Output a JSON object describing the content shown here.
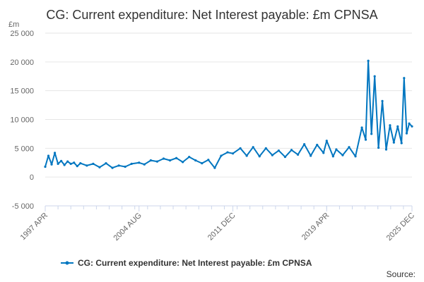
{
  "chart_data": {
    "type": "line",
    "title": "CG: Current expenditure: Net Interest payable: £m CPNSA",
    "ylabel": "£m",
    "xlabel": "",
    "ylim": [
      -5000,
      25000
    ],
    "yticks": [
      "25 000",
      "20 000",
      "15 000",
      "10 000",
      "5 000",
      "0",
      "-5 000"
    ],
    "ytick_values": [
      25000,
      20000,
      15000,
      10000,
      5000,
      0,
      -5000
    ],
    "xticks": [
      "1997 APR",
      "2004 AUG",
      "2011 DEC",
      "2019 APR",
      "2025 DEC"
    ],
    "xtick_values": [
      1997.25,
      2004.583,
      2011.917,
      2019.25,
      2025.917
    ],
    "xlim": [
      1997.25,
      2025.917
    ],
    "grid": true,
    "legend_position": "bottom-center",
    "series": [
      {
        "name": "CG: Current expenditure: Net Interest payable: £m CPNSA",
        "color": "#0076c0",
        "x": [
          1997.25,
          1997.5,
          1997.75,
          1998.0,
          1998.25,
          1998.5,
          1998.75,
          1999.0,
          1999.25,
          1999.5,
          1999.75,
          2000.0,
          2000.5,
          2001.0,
          2001.5,
          2002.0,
          2002.5,
          2003.0,
          2003.5,
          2004.0,
          2004.583,
          2005.0,
          2005.5,
          2006.0,
          2006.5,
          2007.0,
          2007.5,
          2008.0,
          2008.5,
          2009.0,
          2009.5,
          2010.0,
          2010.5,
          2011.0,
          2011.5,
          2011.917,
          2012.5,
          2013.0,
          2013.5,
          2014.0,
          2014.5,
          2015.0,
          2015.5,
          2016.0,
          2016.5,
          2017.0,
          2017.5,
          2018.0,
          2018.5,
          2019.0,
          2019.25,
          2019.75,
          2020.0,
          2020.5,
          2021.0,
          2021.5,
          2022.0,
          2022.3,
          2022.5,
          2022.75,
          2023.0,
          2023.3,
          2023.6,
          2023.9,
          2024.2,
          2024.5,
          2024.8,
          2025.1,
          2025.3,
          2025.5,
          2025.7,
          2025.917
        ],
        "values": [
          1800,
          3700,
          2200,
          4200,
          2300,
          2800,
          2100,
          2700,
          2300,
          2500,
          1900,
          2400,
          2000,
          2300,
          1700,
          2400,
          1600,
          2000,
          1800,
          2300,
          2500,
          2200,
          2900,
          2700,
          3200,
          2900,
          3300,
          2600,
          3500,
          2900,
          2400,
          3000,
          1600,
          3700,
          4300,
          4100,
          5000,
          3700,
          5200,
          3600,
          5000,
          3800,
          4600,
          3500,
          4700,
          3900,
          5700,
          3700,
          5600,
          4200,
          6300,
          3600,
          4800,
          3800,
          5200,
          3600,
          8600,
          6500,
          20200,
          7500,
          17500,
          5100,
          13200,
          4800,
          9000,
          6000,
          8800,
          5900,
          17200,
          7600,
          9300,
          8800
        ]
      }
    ]
  },
  "legend": {
    "label": "CG: Current expenditure: Net Interest payable: £m CPNSA"
  },
  "source": {
    "label": "Source:"
  }
}
